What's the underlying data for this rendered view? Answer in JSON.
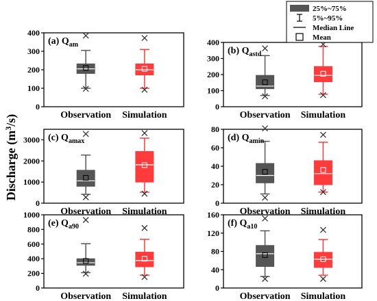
{
  "figure": {
    "y_label": "Discharge (m",
    "y_label_sup": "3",
    "y_label_end": "/s)"
  },
  "legend": {
    "items": [
      {
        "symbol": "box",
        "label": "25%~75%"
      },
      {
        "symbol": "whisker",
        "label": "5%~95%"
      },
      {
        "symbol": "line",
        "label": "Median Line"
      },
      {
        "symbol": "square",
        "label": "Mean"
      }
    ]
  },
  "colors": {
    "observation": "#555555",
    "simulation": "#ff3b3b",
    "median_observation": "#ffffff",
    "median_simulation": "#ffffff"
  },
  "chart_data": [
    {
      "type": "box",
      "panel": "(a)",
      "title_main": "(a) Q",
      "title_sub": "am",
      "categories": [
        "Observation",
        "Simulation"
      ],
      "ylim": [
        0,
        400
      ],
      "yticks": [
        0,
        100,
        200,
        300,
        400
      ],
      "series": [
        {
          "p5": 100,
          "q1": 180,
          "median": 205,
          "q3": 232,
          "p95": 305,
          "mean": 210,
          "min": 97,
          "max": 385
        },
        {
          "p5": 100,
          "q1": 172,
          "median": 200,
          "q3": 232,
          "p95": 310,
          "mean": 205,
          "min": 92,
          "max": 372
        }
      ]
    },
    {
      "type": "box",
      "panel": "(b)",
      "title_main": "(b) Q",
      "title_sub": "astd",
      "categories": [
        "Observation",
        "Simulation"
      ],
      "ylim": [
        0,
        400
      ],
      "yticks": [
        0,
        100,
        200,
        300,
        400
      ],
      "series": [
        {
          "p5": 70,
          "q1": 112,
          "median": 128,
          "q3": 195,
          "p95": 318,
          "mean": 152,
          "min": 65,
          "max": 363
        },
        {
          "p5": 78,
          "q1": 155,
          "median": 195,
          "q3": 250,
          "p95": 375,
          "mean": 205,
          "min": 72,
          "max": 388
        }
      ]
    },
    {
      "type": "box",
      "panel": "(c)",
      "title_main": "(c) Q",
      "title_sub": "amax",
      "categories": [
        "Observation",
        "Simulation"
      ],
      "ylim": [
        0,
        3500
      ],
      "yticks": [
        0,
        1000,
        2000,
        3000
      ],
      "series": [
        {
          "p5": 420,
          "q1": 800,
          "median": 1060,
          "q3": 1560,
          "p95": 2280,
          "mean": 1200,
          "min": 280,
          "max": 3280
        },
        {
          "p5": 520,
          "q1": 1000,
          "median": 1820,
          "q3": 2450,
          "p95": 3080,
          "mean": 1800,
          "min": 450,
          "max": 3320
        }
      ]
    },
    {
      "type": "box",
      "panel": "(d)",
      "title_main": "(d) Q",
      "title_sub": "amin",
      "categories": [
        "Observation",
        "Simulation"
      ],
      "ylim": [
        0,
        80
      ],
      "yticks": [
        0,
        20,
        40,
        60,
        80
      ],
      "series": [
        {
          "p5": 10,
          "q1": 22,
          "median": 30,
          "q3": 43,
          "p95": 67,
          "mean": 34,
          "min": 6,
          "max": 81
        },
        {
          "p5": 12,
          "q1": 20,
          "median": 32,
          "q3": 46,
          "p95": 66,
          "mean": 36,
          "min": 12,
          "max": 74
        }
      ]
    },
    {
      "type": "box",
      "panel": "(e)",
      "title_main": "(e) Q",
      "title_sub": "a90",
      "categories": [
        "Observation",
        "Simulation"
      ],
      "ylim": [
        0,
        1000
      ],
      "yticks": [
        0,
        200,
        400,
        600,
        800,
        1000
      ],
      "series": [
        {
          "p5": 210,
          "q1": 310,
          "median": 345,
          "q3": 400,
          "p95": 605,
          "mean": 370,
          "min": 195,
          "max": 930
        },
        {
          "p5": 175,
          "q1": 290,
          "median": 375,
          "q3": 490,
          "p95": 665,
          "mean": 400,
          "min": 150,
          "max": 820
        }
      ]
    },
    {
      "type": "box",
      "panel": "(f)",
      "title_main": "(f) Q",
      "title_sub": "a10",
      "categories": [
        "Observation",
        "Simulation"
      ],
      "ylim": [
        0,
        160
      ],
      "yticks": [
        0,
        40,
        80,
        120,
        160
      ],
      "series": [
        {
          "p5": 25,
          "q1": 47,
          "median": 75,
          "q3": 93,
          "p95": 125,
          "mean": 72,
          "min": 20,
          "max": 152
        },
        {
          "p5": 28,
          "q1": 45,
          "median": 63,
          "q3": 78,
          "p95": 106,
          "mean": 63,
          "min": 20,
          "max": 127
        }
      ]
    }
  ]
}
